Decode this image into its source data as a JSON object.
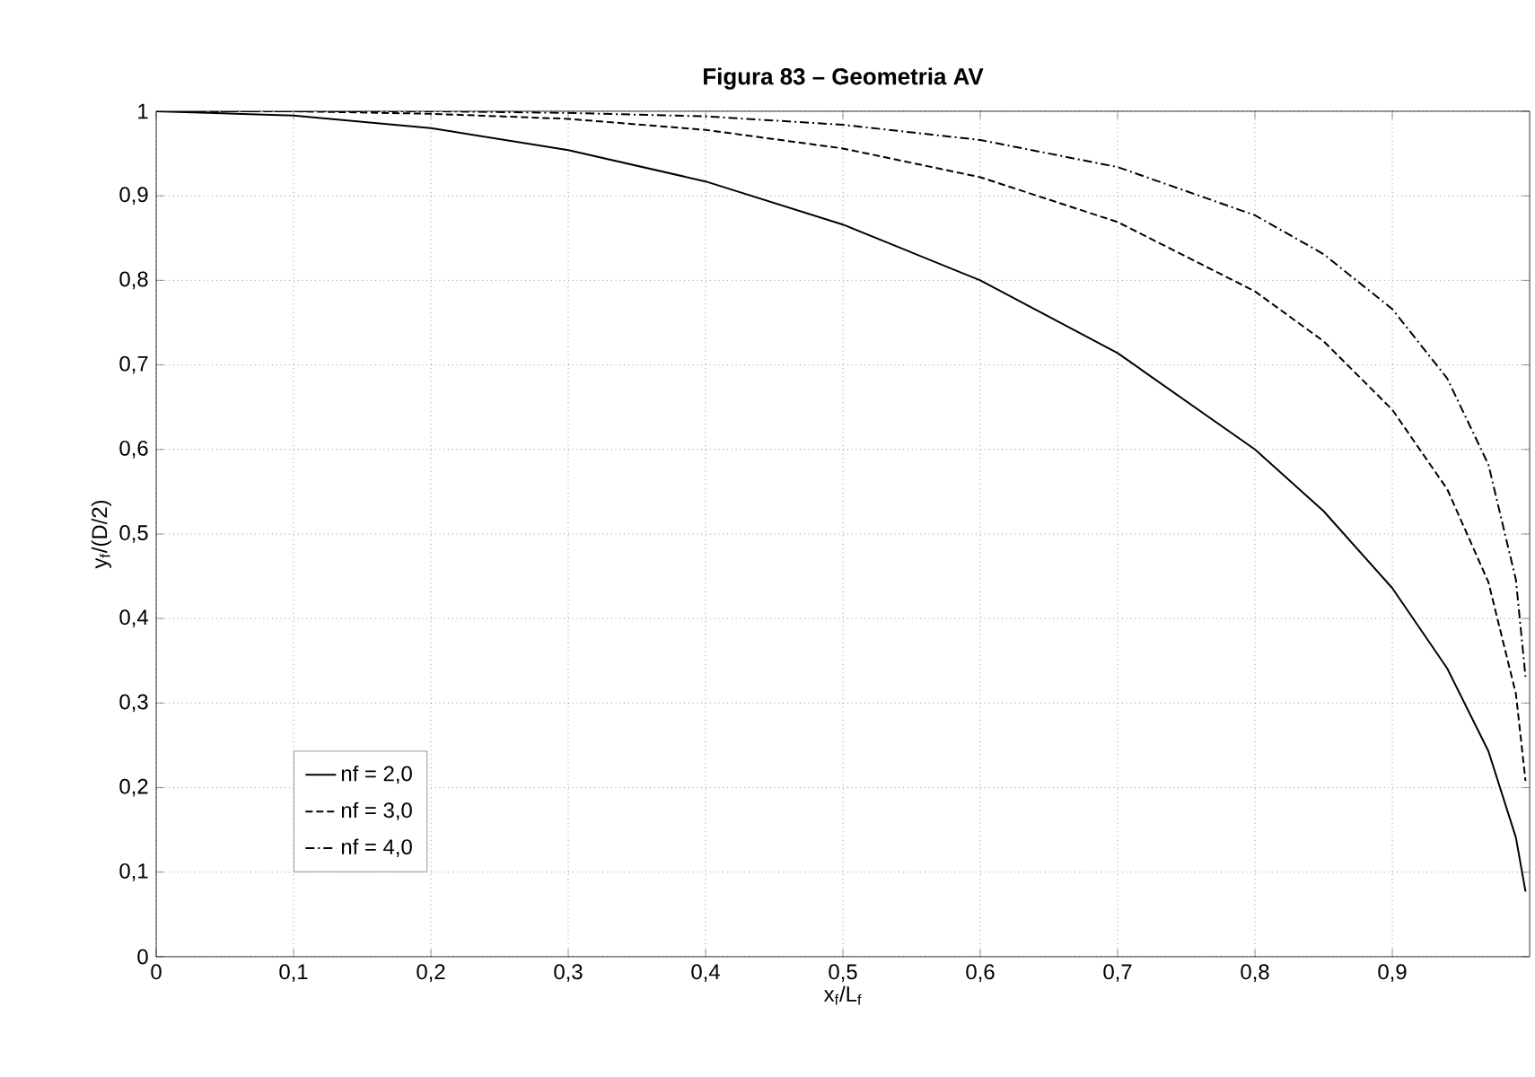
{
  "chart_data": {
    "type": "line",
    "title": "**Figura 83 – Geometria AV**",
    "xlabel": "x$_{f}$/L$_{f}$",
    "ylabel": "y$_{f}$/(D/2)",
    "x": [
      0,
      0.1,
      0.2,
      0.3,
      0.4,
      0.5,
      0.6,
      0.7,
      0.8,
      0.85,
      0.9,
      0.94,
      0.97,
      0.99,
      0.997
    ],
    "series": [
      {
        "name": "nf = 2,0",
        "color": "#000000",
        "line_style": "solid",
        "values": [
          1,
          0.995,
          0.98,
          0.954,
          0.917,
          0.866,
          0.8,
          0.714,
          0.6,
          0.527,
          0.436,
          0.341,
          0.243,
          0.141,
          0.077
        ]
      },
      {
        "name": "nf = 3,0",
        "color": "#000000",
        "line_style": "dashed",
        "values": [
          1,
          1,
          0.997,
          0.991,
          0.978,
          0.956,
          0.922,
          0.869,
          0.787,
          0.728,
          0.647,
          0.553,
          0.443,
          0.311,
          0.208
        ]
      },
      {
        "name": "nf = 4,0",
        "color": "#000000",
        "line_style": "dashdot",
        "values": [
          1,
          1,
          1,
          0.998,
          0.994,
          0.984,
          0.966,
          0.934,
          0.877,
          0.831,
          0.766,
          0.684,
          0.582,
          0.446,
          0.331
        ]
      }
    ],
    "xlim": [
      0,
      1
    ],
    "ylim": [
      0,
      1
    ],
    "xticks": [
      0,
      {
        "value": 0.1,
        "label": "0,1"
      },
      {
        "value": 0.2,
        "label": "0,2"
      },
      {
        "value": 0.3,
        "label": "0,3"
      },
      {
        "value": 0.4,
        "label": "0,4"
      },
      {
        "value": 0.5,
        "label": "0,5"
      },
      {
        "value": 0.6,
        "label": "0,6"
      },
      {
        "value": 0.7,
        "label": "0,7"
      },
      {
        "value": 0.8,
        "label": "0,8"
      },
      {
        "value": 0.9,
        "label": "0,9"
      }
    ],
    "yticks": [
      0,
      {
        "value": 0.1,
        "label": "0,1"
      },
      {
        "value": 0.2,
        "label": "0,2"
      },
      {
        "value": 0.3,
        "label": "0,3"
      },
      {
        "value": 0.4,
        "label": "0,4"
      },
      {
        "value": 0.5,
        "label": "0,5"
      },
      {
        "value": 0.6,
        "label": "0,6"
      },
      {
        "value": 0.7,
        "label": "0,7"
      },
      {
        "value": 0.8,
        "label": "0,8"
      },
      {
        "value": 0.9,
        "label": "0,9"
      },
      1
    ],
    "grid": true,
    "legend": "bottom left",
    "marker": "none"
  }
}
